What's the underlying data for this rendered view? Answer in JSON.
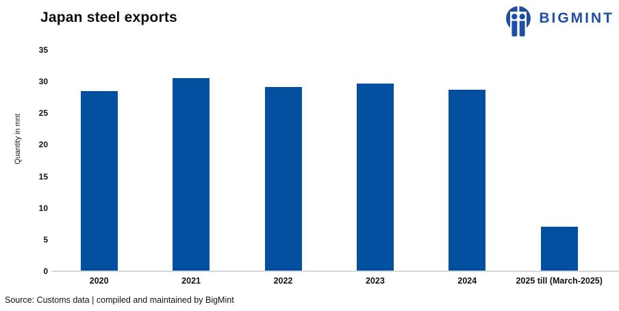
{
  "header": {
    "title": "Japan steel exports",
    "brand": "BIGMINT"
  },
  "chart_data": {
    "type": "bar",
    "title": "Japan steel exports",
    "categories": [
      "2020",
      "2021",
      "2022",
      "2023",
      "2024",
      "2025 till (March-2025)"
    ],
    "values": [
      28.5,
      30.6,
      29.2,
      29.7,
      28.7,
      7.0
    ],
    "xlabel": "",
    "ylabel": "Quantity in mnt",
    "ylim": [
      0,
      35
    ],
    "yticks": [
      0,
      5,
      10,
      15,
      20,
      25,
      30,
      35
    ],
    "grid": false,
    "legend": false,
    "bar_color": "#0450a0"
  },
  "footer": {
    "source": "Source: Customs data | compiled and maintained by BigMint"
  },
  "colors": {
    "bar": "#0450a0",
    "brand": "#1e4fa5",
    "axis_line": "#d9d9d9",
    "text": "#111111"
  }
}
